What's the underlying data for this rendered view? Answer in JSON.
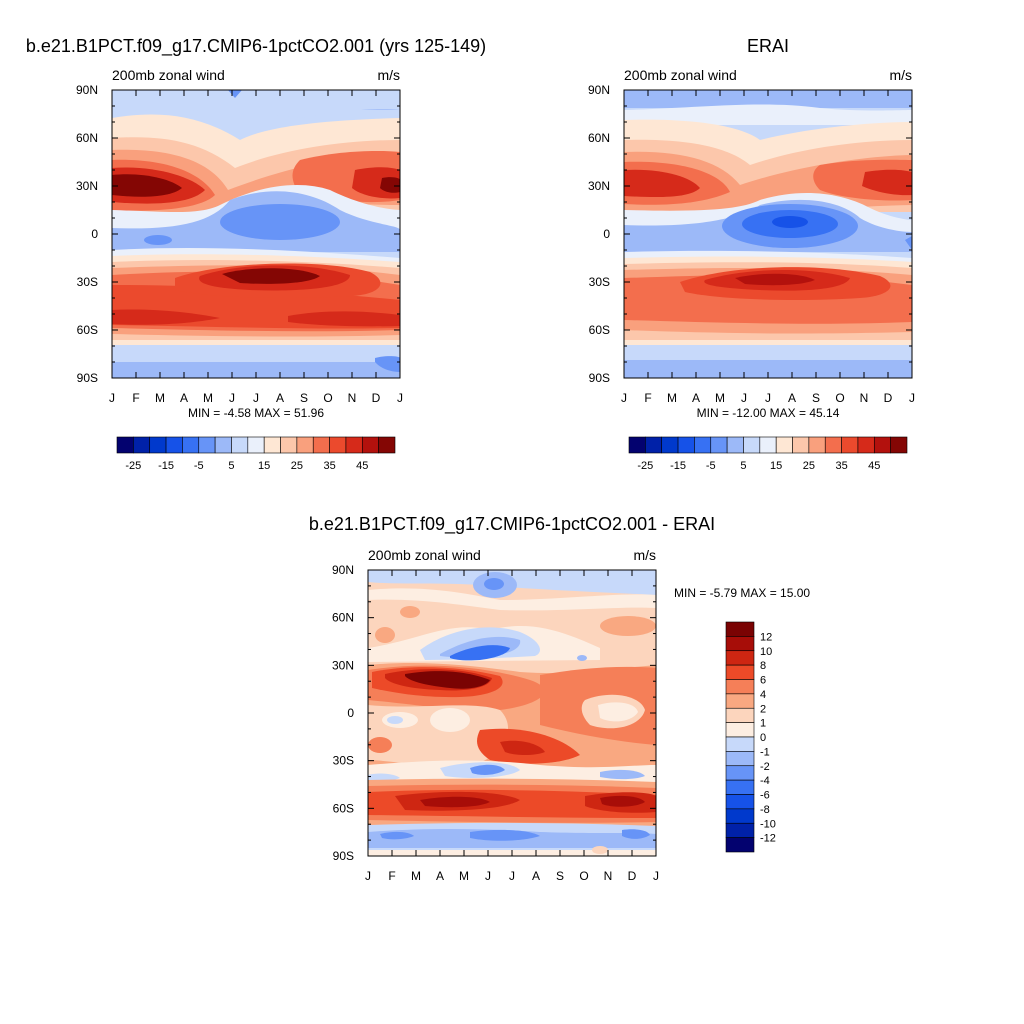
{
  "chart_data": [
    {
      "type": "heatmap",
      "title": "b.e21.B1PCT.f09_g17.CMIP6-1pctCO2.001 (yrs 125-149)",
      "left_label": "200mb zonal wind",
      "right_label": "m/s",
      "stats": "MIN =  -4.58 MAX =  51.96",
      "x_ticks": [
        "J",
        "F",
        "M",
        "A",
        "M",
        "J",
        "J",
        "A",
        "S",
        "O",
        "N",
        "D",
        "J"
      ],
      "y_ticks": [
        "90N",
        "60N",
        "30N",
        "0",
        "30S",
        "60S",
        "90S"
      ],
      "levels": [
        -30,
        -25,
        -20,
        -15,
        -10,
        -5,
        0,
        5,
        10,
        15,
        20,
        25,
        30,
        35,
        40,
        45,
        50
      ],
      "colorbar_labels": [
        "-25",
        "-15",
        "-5",
        "5",
        "15",
        "25",
        "35",
        "45"
      ],
      "colorbar_colors": [
        "#03026f",
        "#0021a8",
        "#0039cc",
        "#1652e8",
        "#3771f3",
        "#6794f7",
        "#9cb9f8",
        "#c7d9fa",
        "#eaf0fb",
        "#fee7d4",
        "#fcc7ab",
        "#f9a07d",
        "#f36e4d",
        "#eb4a2d",
        "#d62a1a",
        "#b3110d",
        "#840604"
      ],
      "cells": [
        {
          "x": 2.0,
          "y": 25,
          "v": 52
        },
        {
          "x": 7.0,
          "y": -28,
          "v": 46
        },
        {
          "x": 3.0,
          "y": -52,
          "v": 40
        }
      ]
    },
    {
      "type": "heatmap",
      "title": "ERAI",
      "left_label": "200mb zonal wind",
      "right_label": "m/s",
      "stats": "MIN = -12.00 MAX =  45.14",
      "x_ticks": [
        "J",
        "F",
        "M",
        "A",
        "M",
        "J",
        "J",
        "A",
        "S",
        "O",
        "N",
        "D",
        "J"
      ],
      "y_ticks": [
        "90N",
        "60N",
        "30N",
        "0",
        "30S",
        "60S",
        "90S"
      ],
      "levels": [
        -30,
        -25,
        -20,
        -15,
        -10,
        -5,
        0,
        5,
        10,
        15,
        20,
        25,
        30,
        35,
        40,
        45,
        50
      ],
      "colorbar_labels": [
        "-25",
        "-15",
        "-5",
        "5",
        "15",
        "25",
        "35",
        "45"
      ],
      "colorbar_colors": [
        "#03026f",
        "#0021a8",
        "#0039cc",
        "#1652e8",
        "#3771f3",
        "#6794f7",
        "#9cb9f8",
        "#c7d9fa",
        "#eaf0fb",
        "#fee7d4",
        "#fcc7ab",
        "#f9a07d",
        "#f36e4d",
        "#eb4a2d",
        "#d62a1a",
        "#b3110d",
        "#840604"
      ],
      "cells": [
        {
          "x": 7.0,
          "y": 6,
          "v": -12
        },
        {
          "x": 7.0,
          "y": -30,
          "v": 45
        }
      ]
    },
    {
      "type": "heatmap",
      "title": "b.e21.B1PCT.f09_g17.CMIP6-1pctCO2.001 - ERAI",
      "left_label": "200mb zonal wind",
      "right_label": "m/s",
      "stats": "MIN =  -5.79 MAX =  15.00",
      "x_ticks": [
        "J",
        "F",
        "M",
        "A",
        "M",
        "J",
        "J",
        "A",
        "S",
        "O",
        "N",
        "D",
        "J"
      ],
      "y_ticks": [
        "90N",
        "60N",
        "30N",
        "0",
        "30S",
        "60S",
        "90S"
      ],
      "levels": [
        -12,
        -10,
        -8,
        -6,
        -4,
        -2,
        -1,
        0,
        1,
        2,
        4,
        6,
        8,
        10,
        12
      ],
      "colorbar_labels": [
        "12",
        "10",
        "8",
        "6",
        "4",
        "2",
        "1",
        "0",
        "-1",
        "-2",
        "-4",
        "-6",
        "-8",
        "-10",
        "-12"
      ],
      "colorbar_colors": [
        "#03026f",
        "#0021a8",
        "#0039cc",
        "#1652e8",
        "#3771f3",
        "#6794f7",
        "#9cb9f8",
        "#c7d9fa",
        "#fdeee2",
        "#fcd5bd",
        "#f9a881",
        "#f57f58",
        "#ec4a28",
        "#ce2612",
        "#a70d08",
        "#7a0303"
      ],
      "cells": [
        {
          "x": 4.0,
          "y": 22,
          "v": 15
        },
        {
          "x": 4.0,
          "y": 33,
          "v": -5.8
        },
        {
          "x": 10.5,
          "y": -55,
          "v": 11
        }
      ]
    }
  ]
}
